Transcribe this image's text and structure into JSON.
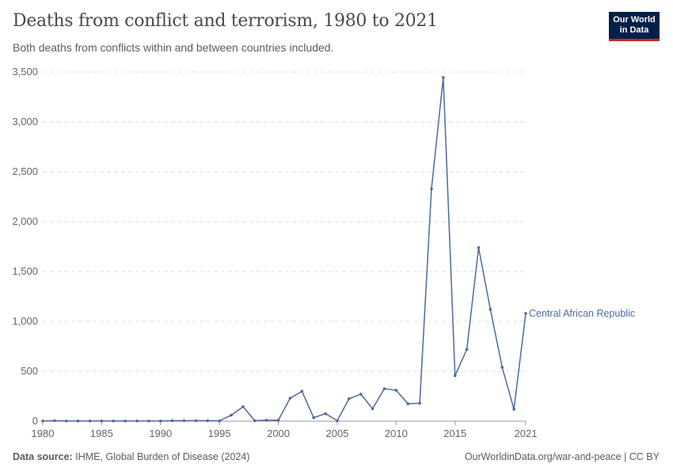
{
  "header": {
    "title": "Deaths from conflict and terrorism, 1980 to 2021",
    "subtitle": "Both deaths from conflicts within and between countries included."
  },
  "logo": {
    "line1": "Our World",
    "line2": "in Data"
  },
  "footer": {
    "source_label": "Data source:",
    "source": "IHME, Global Burden of Disease (2024)",
    "link": "OurWorldinData.org/war-and-peace | CC BY"
  },
  "chart_data": {
    "type": "line",
    "title": "Deaths from conflict and terrorism, 1980 to 2021",
    "ylim": [
      0,
      3500
    ],
    "xlim": [
      1980,
      2021
    ],
    "yticks": [
      0,
      500,
      1000,
      1500,
      2000,
      2500,
      3000,
      3500
    ],
    "ytick_labels": [
      "0",
      "500",
      "1,000",
      "1,500",
      "2,000",
      "2,500",
      "3,000",
      "3,500"
    ],
    "xticks": [
      1980,
      1985,
      1990,
      1995,
      2000,
      2005,
      2010,
      2015,
      2021
    ],
    "grid": "horizontal dashed",
    "color": "#4c6a9c",
    "series": [
      {
        "name": "Central African Republic",
        "x": [
          1980,
          1981,
          1982,
          1983,
          1984,
          1985,
          1986,
          1987,
          1988,
          1989,
          1990,
          1991,
          1992,
          1993,
          1994,
          1995,
          1996,
          1997,
          1998,
          1999,
          2000,
          2001,
          2002,
          2003,
          2004,
          2005,
          2006,
          2007,
          2008,
          2009,
          2010,
          2011,
          2012,
          2013,
          2014,
          2015,
          2016,
          2017,
          2018,
          2019,
          2020,
          2021
        ],
        "values": [
          2,
          5,
          2,
          2,
          2,
          2,
          2,
          2,
          2,
          2,
          2,
          5,
          5,
          5,
          5,
          3,
          60,
          145,
          5,
          10,
          10,
          230,
          300,
          35,
          75,
          5,
          225,
          270,
          125,
          325,
          310,
          175,
          180,
          2330,
          3445,
          455,
          720,
          1740,
          1120,
          540,
          120,
          1080
        ]
      }
    ]
  }
}
